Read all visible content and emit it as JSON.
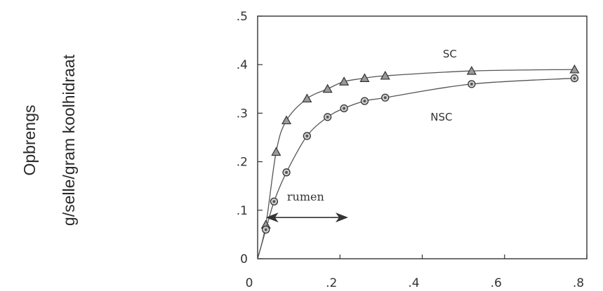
{
  "chart_data": {
    "type": "line",
    "title": "",
    "ylabel": [
      "Opbrengs",
      "g/selle/gram koolhidraat"
    ],
    "xlabel": "",
    "xlim": [
      0,
      0.8
    ],
    "ylim": [
      0,
      0.5
    ],
    "x_ticks": [
      "0",
      ".2",
      ".4",
      ".6",
      ".8"
    ],
    "y_ticks": [
      "0",
      ".1",
      ".2",
      ".3",
      ".4",
      ".5"
    ],
    "grid": false,
    "series": [
      {
        "name": "SC",
        "marker": "triangle",
        "x": [
          0.02,
          0.045,
          0.07,
          0.12,
          0.17,
          0.21,
          0.26,
          0.31,
          0.52,
          0.77
        ],
        "y": [
          0.07,
          0.22,
          0.285,
          0.33,
          0.35,
          0.365,
          0.372,
          0.377,
          0.387,
          0.39
        ]
      },
      {
        "name": "NSC",
        "marker": "circle",
        "x": [
          0.02,
          0.04,
          0.07,
          0.12,
          0.17,
          0.21,
          0.26,
          0.31,
          0.52,
          0.77
        ],
        "y": [
          0.06,
          0.118,
          0.178,
          0.253,
          0.292,
          0.31,
          0.325,
          0.332,
          0.36,
          0.372
        ]
      }
    ],
    "annotations": [
      {
        "text": "rumen",
        "range_x": [
          0.02,
          0.22
        ],
        "y": 0.085,
        "arrow": "double"
      }
    ],
    "series_label_anchor": {
      "SC": {
        "x": 0.45,
        "y": 0.415
      },
      "NSC": {
        "x": 0.42,
        "y": 0.285
      }
    }
  }
}
